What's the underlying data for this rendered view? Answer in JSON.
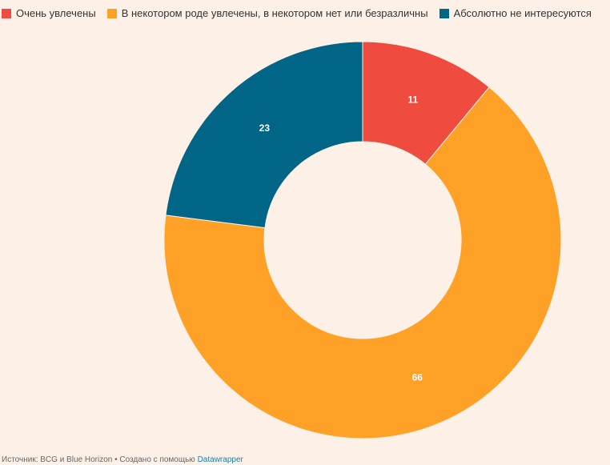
{
  "chart_data": {
    "type": "donut",
    "categories": [
      "Очень увлечены",
      "В некотором роде увлечены, в некотором нет или безразличны",
      "Абсолютно не интересуются"
    ],
    "values": [
      11,
      66,
      23
    ],
    "colors": [
      "#ef4b3e",
      "#ffa126",
      "#006586"
    ],
    "source": "Источник: BCG и Blue Horizon • Создано с помощью",
    "credit": "Datawrapper"
  }
}
